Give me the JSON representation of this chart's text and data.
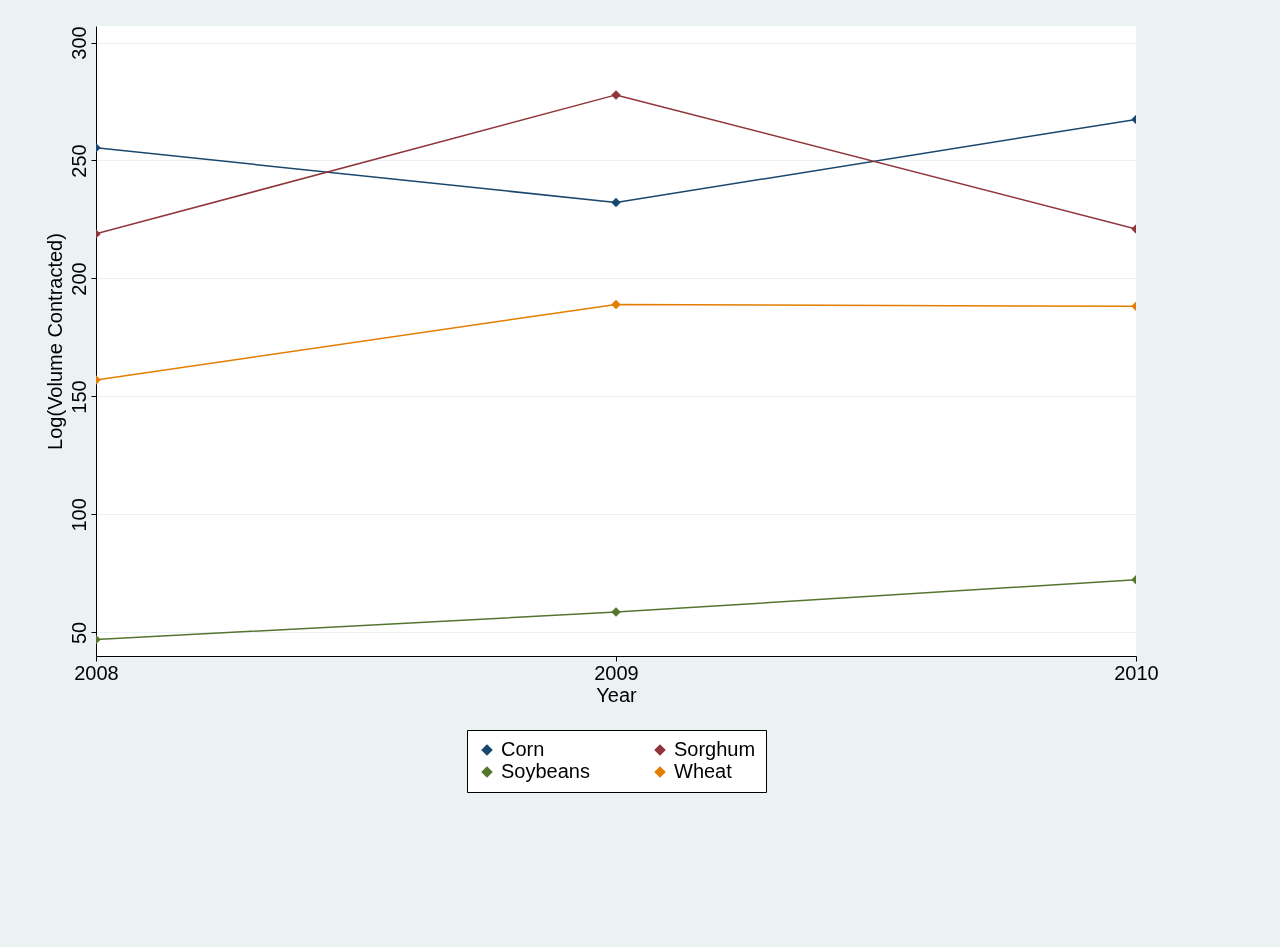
{
  "chart_data": {
    "type": "line",
    "xlabel": "Year",
    "ylabel": "Log(Volume Contracted)",
    "x": [
      2008,
      2009,
      2010
    ],
    "series": [
      {
        "name": "Corn",
        "color": "#1a476f",
        "values": [
          255.4,
          232.2,
          267.4
        ]
      },
      {
        "name": "Sorghum",
        "color": "#90353b",
        "values": [
          218.9,
          277.8,
          221.0
        ]
      },
      {
        "name": "Soybeans",
        "color": "#55752f",
        "values": [
          47.0,
          58.6,
          72.3
        ]
      },
      {
        "name": "Wheat",
        "color": "#e37e00",
        "values": [
          157.0,
          189.0,
          188.2
        ]
      }
    ],
    "xlim": [
      2008,
      2010
    ],
    "xticks": [
      2008,
      2009,
      2010
    ],
    "ylim": [
      40,
      307
    ],
    "yticks": [
      50,
      100,
      150,
      200,
      250,
      300
    ],
    "grid": "y",
    "legend": "bottom",
    "marker": "diamond",
    "line_style": "solid"
  }
}
